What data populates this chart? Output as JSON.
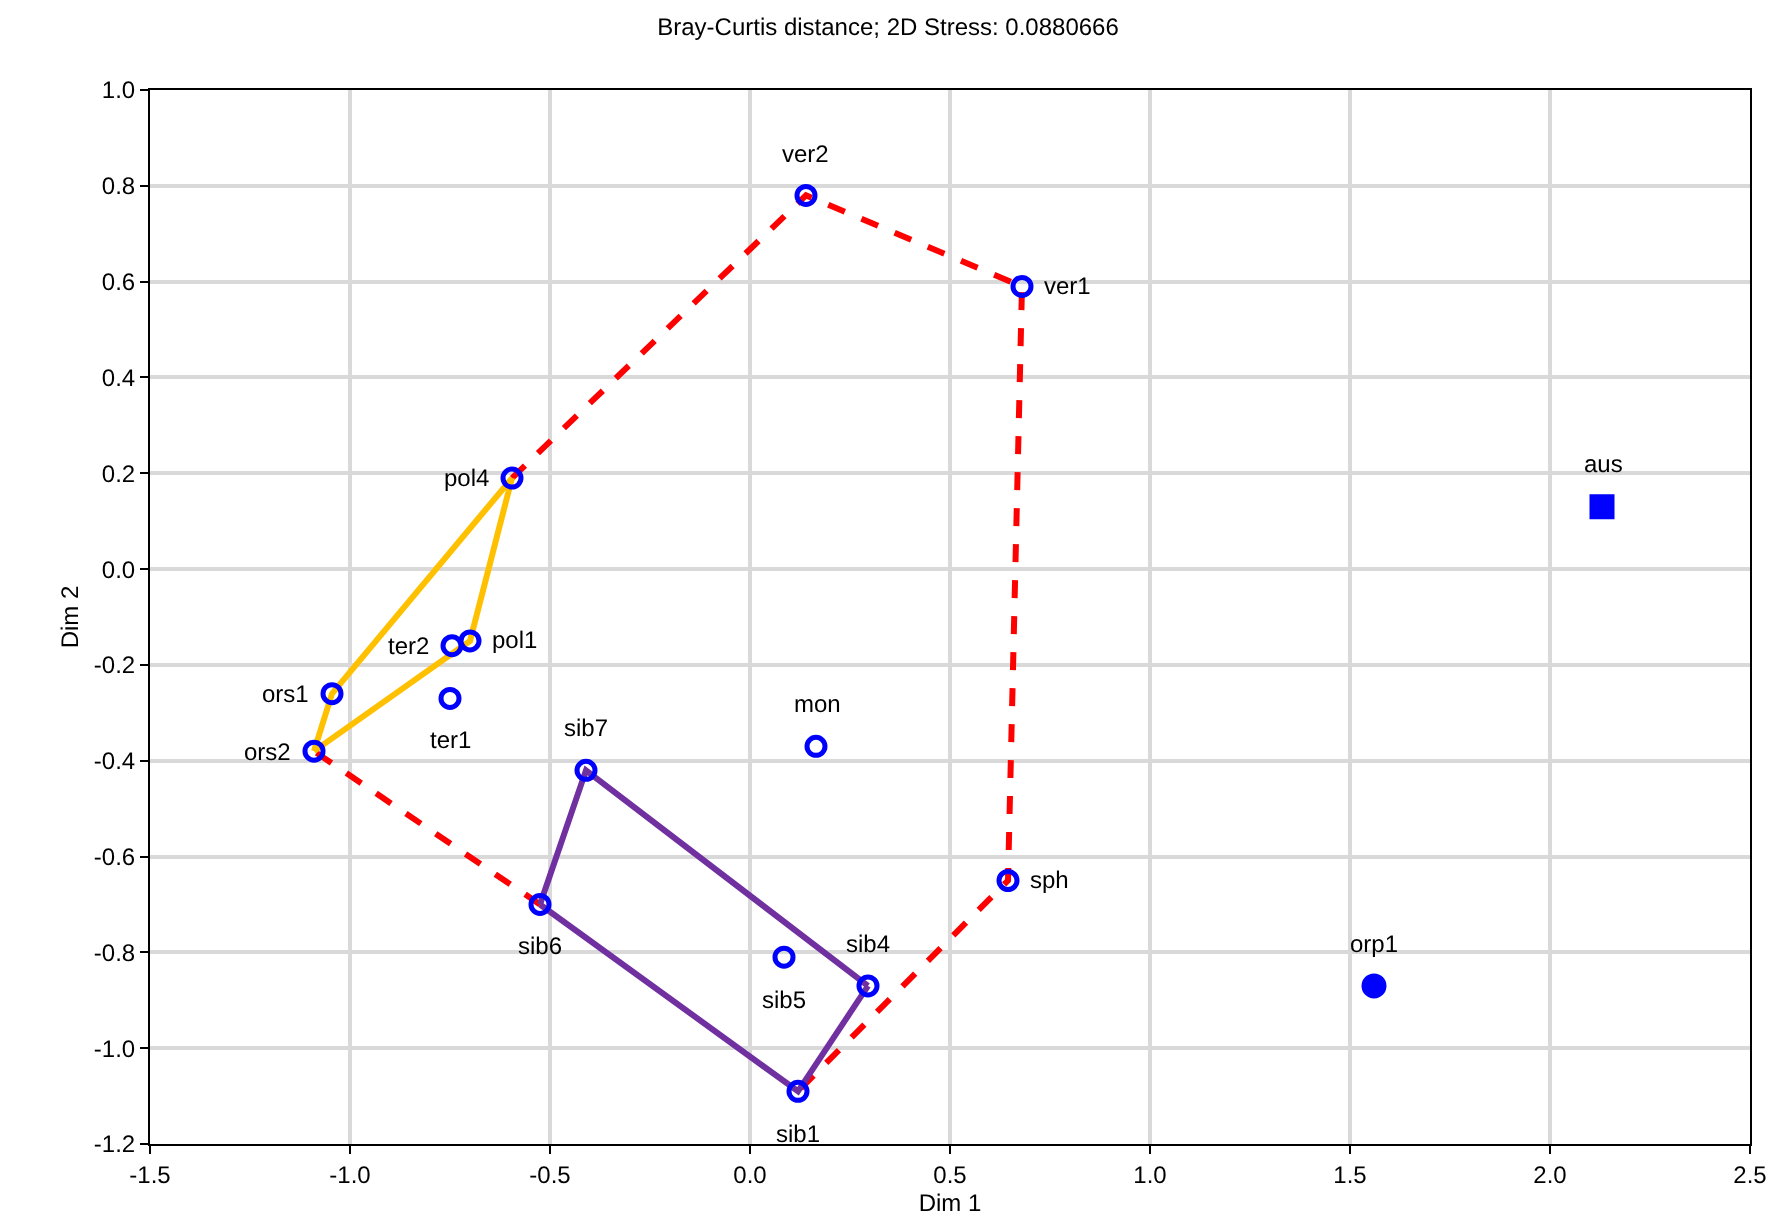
{
  "chart_data": {
    "type": "scatter",
    "title": "Bray-Curtis distance; 2D Stress: 0.0880666",
    "xlabel": "Dim 1",
    "ylabel": "Dim 2",
    "xlim": [
      -1.5,
      2.5
    ],
    "xticks": [
      -1.5,
      {
        "value": -1,
        "label": "-1.0"
      },
      -0.5,
      {
        "value": 0,
        "label": "0.0"
      },
      0.5,
      {
        "value": 1,
        "label": "1.0"
      },
      1.5,
      {
        "value": 2,
        "label": "2.0"
      },
      2.5
    ],
    "ylim": [
      -1.2,
      1.0
    ],
    "yticks": [
      -1.2,
      {
        "value": -1,
        "label": "-1.0"
      },
      -0.8,
      -0.6,
      -0.4,
      -0.2,
      {
        "value": 0,
        "label": "0.0"
      },
      0.2,
      0.4,
      0.6,
      0.8,
      {
        "value": 1,
        "label": "1.0"
      }
    ],
    "grid": true,
    "series": [
      {
        "type": "line",
        "color": "#ff0000",
        "line_style": "dashed",
        "marker": "none",
        "x": [
          -0.595,
          0.14,
          0.68,
          0.645,
          0.12,
          0,
          -0.525,
          -1.09
        ],
        "values": [
          0.19,
          0.78,
          0.59,
          -0.65,
          -1.09,
          null,
          -0.7,
          -0.38
        ]
      },
      {
        "type": "line",
        "color": "#ffc000",
        "line_style": "solid",
        "marker": "none",
        "x": [
          -1.09,
          -0.7,
          -0.595
        ],
        "values": [
          -0.38,
          -0.15,
          0.19
        ]
      },
      {
        "type": "line",
        "color": "#ffc000",
        "line_style": "solid",
        "marker": "none",
        "x": [
          -1.09,
          -1.045,
          -0.595
        ],
        "values": [
          -0.38,
          -0.26,
          0.19
        ]
      },
      {
        "type": "line",
        "color": "#7030a0",
        "line_style": "solid",
        "marker": "none",
        "x": [
          -0.525,
          -0.41,
          0.295
        ],
        "values": [
          -0.7,
          -0.42,
          -0.87
        ]
      },
      {
        "type": "line",
        "color": "#7030a0",
        "line_style": "solid",
        "marker": "none",
        "x": [
          -0.525,
          0.12,
          0.295
        ],
        "values": [
          -0.7,
          -1.09,
          -0.87
        ]
      },
      {
        "color": "#0000ff",
        "marker": "circle",
        "x": [
          0.14,
          0.68,
          -0.595,
          -0.745,
          -0.7,
          -1.045,
          -0.75,
          0.165,
          -1.09,
          -0.41,
          0.645,
          -0.525,
          0.085,
          0.295,
          0.12
        ],
        "values": [
          0.78,
          0.59,
          0.19,
          -0.16,
          -0.15,
          -0.26,
          -0.27,
          -0.37,
          -0.38,
          -0.42,
          -0.65,
          -0.7,
          -0.81,
          -0.87,
          -1.09
        ]
      },
      {
        "color": "#0000ff",
        "marker": "square",
        "x": [
          2.13
        ],
        "values": [
          0.13
        ]
      },
      {
        "color": "#0000ff",
        "marker": "circle",
        "x": [
          1.56
        ],
        "values": [
          -0.87
        ]
      }
    ],
    "annotations": [
      {
        "text": "ver2",
        "x": 0.14,
        "y": 0.78
      },
      {
        "text": "ver1",
        "x": 0.68,
        "y": 0.59
      },
      {
        "text": "pol4",
        "x": -0.595,
        "y": 0.19
      },
      {
        "text": "aus",
        "x": 2.13,
        "y": 0.13
      },
      {
        "text": "ter2",
        "x": -0.745,
        "y": -0.16
      },
      {
        "text": "pol1",
        "x": -0.7,
        "y": -0.15
      },
      {
        "text": "ors1",
        "x": -1.045,
        "y": -0.26
      },
      {
        "text": "ter1",
        "x": -0.75,
        "y": -0.27
      },
      {
        "text": "mon",
        "x": 0.165,
        "y": -0.37
      },
      {
        "text": "ors2",
        "x": -1.09,
        "y": -0.38
      },
      {
        "text": "sib7",
        "x": -0.41,
        "y": -0.42
      },
      {
        "text": "sph",
        "x": 0.645,
        "y": -0.65
      },
      {
        "text": "sib6",
        "x": -0.525,
        "y": -0.7
      },
      {
        "text": "sib5",
        "x": 0.085,
        "y": -0.81
      },
      {
        "text": "sib4",
        "x": 0.295,
        "y": -0.87
      },
      {
        "text": "orp1",
        "x": 1.56,
        "y": -0.87
      },
      {
        "text": "sib1",
        "x": 0.12,
        "y": -1.09
      }
    ]
  }
}
